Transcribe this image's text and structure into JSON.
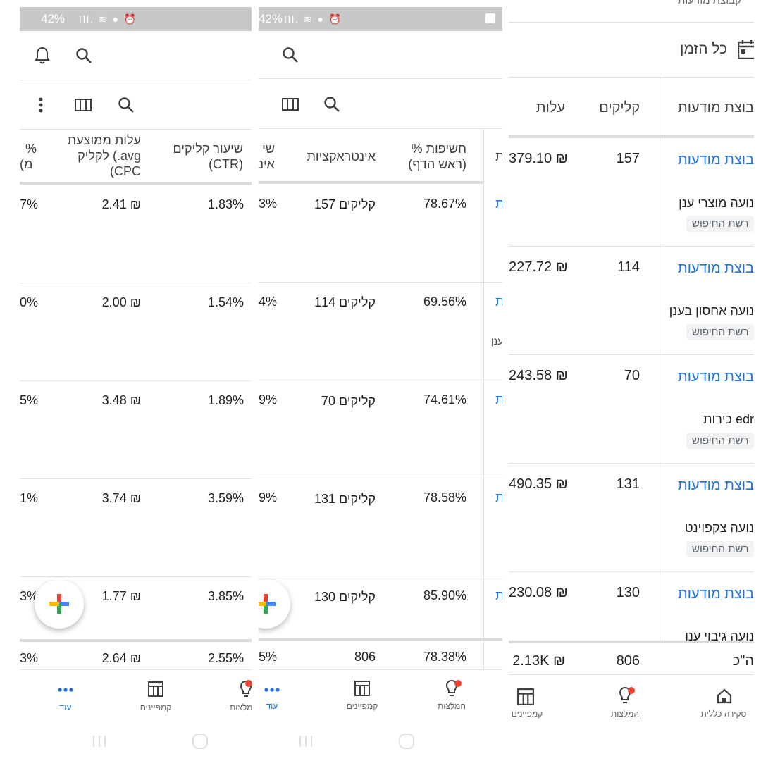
{
  "status": {
    "battery": "42%",
    "battery_cut": "42%"
  },
  "panel1": {
    "headers": {
      "pct_cut": "%",
      "pct_cut2": "(מ",
      "avg_cpc_l1": "עלות ממוצעת",
      "avg_cpc_l2": "לקליק (.avg",
      "avg_cpc_l3": "(CPC",
      "ctr_l1": "שיעור קליקים",
      "ctr_l2": "(CTR)"
    },
    "rows": [
      {
        "cut": "7%",
        "cpc": "2.41 ₪",
        "ctr": "1.83%"
      },
      {
        "cut": "0%",
        "cpc": "2.00 ₪",
        "ctr": "1.54%"
      },
      {
        "cut": "5%",
        "cpc": "3.48 ₪",
        "ctr": "1.89%"
      },
      {
        "cut": "1%",
        "cpc": "3.74 ₪",
        "ctr": "3.59%"
      },
      {
        "cut": "3%",
        "cpc": "1.77 ₪",
        "ctr": "3.85%"
      }
    ],
    "total": {
      "cut": "3%",
      "cpc": "2.64 ₪",
      "ctr": "2.55%"
    },
    "nav": {
      "more": "עוד",
      "campaigns": "קמפיינים",
      "recs": "מלצות"
    }
  },
  "panel2": {
    "headers": {
      "cut_l1": "שי",
      "cut_l2": "אינ",
      "interactions": "אינטראקציות",
      "impr_l1": "% חשיפות",
      "impr_l2": "(ראש הדף)",
      "edge": "ת"
    },
    "rows": [
      {
        "cut": "3%",
        "interactions": "157 קליקים",
        "impr": "78.67%",
        "edge": "ת"
      },
      {
        "cut": "4%",
        "interactions": "114 קליקים",
        "impr": "69.56%",
        "edge": "ת",
        "edge2": "ענן"
      },
      {
        "cut": "9%",
        "interactions": "70 קליקים",
        "impr": "74.61%",
        "edge": "ת"
      },
      {
        "cut": "9%",
        "interactions": "131 קליקים",
        "impr": "78.58%",
        "edge": "ת"
      },
      {
        "cut": "",
        "interactions": "130 קליקים",
        "impr": "85.90%",
        "edge": "ת"
      }
    ],
    "total": {
      "cut": "5%",
      "interactions": "806",
      "impr": "78.38%"
    },
    "nav": {
      "more": "עוד",
      "campaigns": "קמפיינים",
      "recs": "המלצות"
    }
  },
  "panel3": {
    "top_cut": "קבוצת מודעות",
    "date_range": "כל הזמן",
    "headers": {
      "cost": "עלות",
      "clicks": "קליקים",
      "adgroup": "בוצת מודעות"
    },
    "rows": [
      {
        "cost": "379.10 ₪",
        "clicks": "157",
        "adgroup": "בוצת מודעות",
        "campaign": "נועה מוצרי ענן",
        "network": "רשת החיפוש"
      },
      {
        "cost": "227.72 ₪",
        "clicks": "114",
        "adgroup": "בוצת מודעות",
        "campaign": "נועה אחסון בענן",
        "network": "רשת החיפוש"
      },
      {
        "cost": "243.58 ₪",
        "clicks": "70",
        "adgroup": "בוצת מודעות",
        "campaign": "כירות edr",
        "network": "רשת החיפוש"
      },
      {
        "cost": "490.35 ₪",
        "clicks": "131",
        "adgroup": "בוצת מודעות",
        "campaign": "נועה צקפוינט",
        "network": "רשת החיפוש"
      },
      {
        "cost": "230.08 ₪",
        "clicks": "130",
        "adgroup": "בוצת מודעות",
        "campaign": "נועה גיבוי ענן",
        "network": ""
      }
    ],
    "total": {
      "cost": "2.13K ₪",
      "clicks": "806",
      "label": "ה\"כ"
    },
    "nav": {
      "overview": "סקירה כללית",
      "recs": "המלצות",
      "campaigns": "קמפיינים"
    }
  },
  "colors": {
    "accent": "#1a73e8",
    "statusbar": "#c8c8c8",
    "badge": "#ea4335"
  }
}
